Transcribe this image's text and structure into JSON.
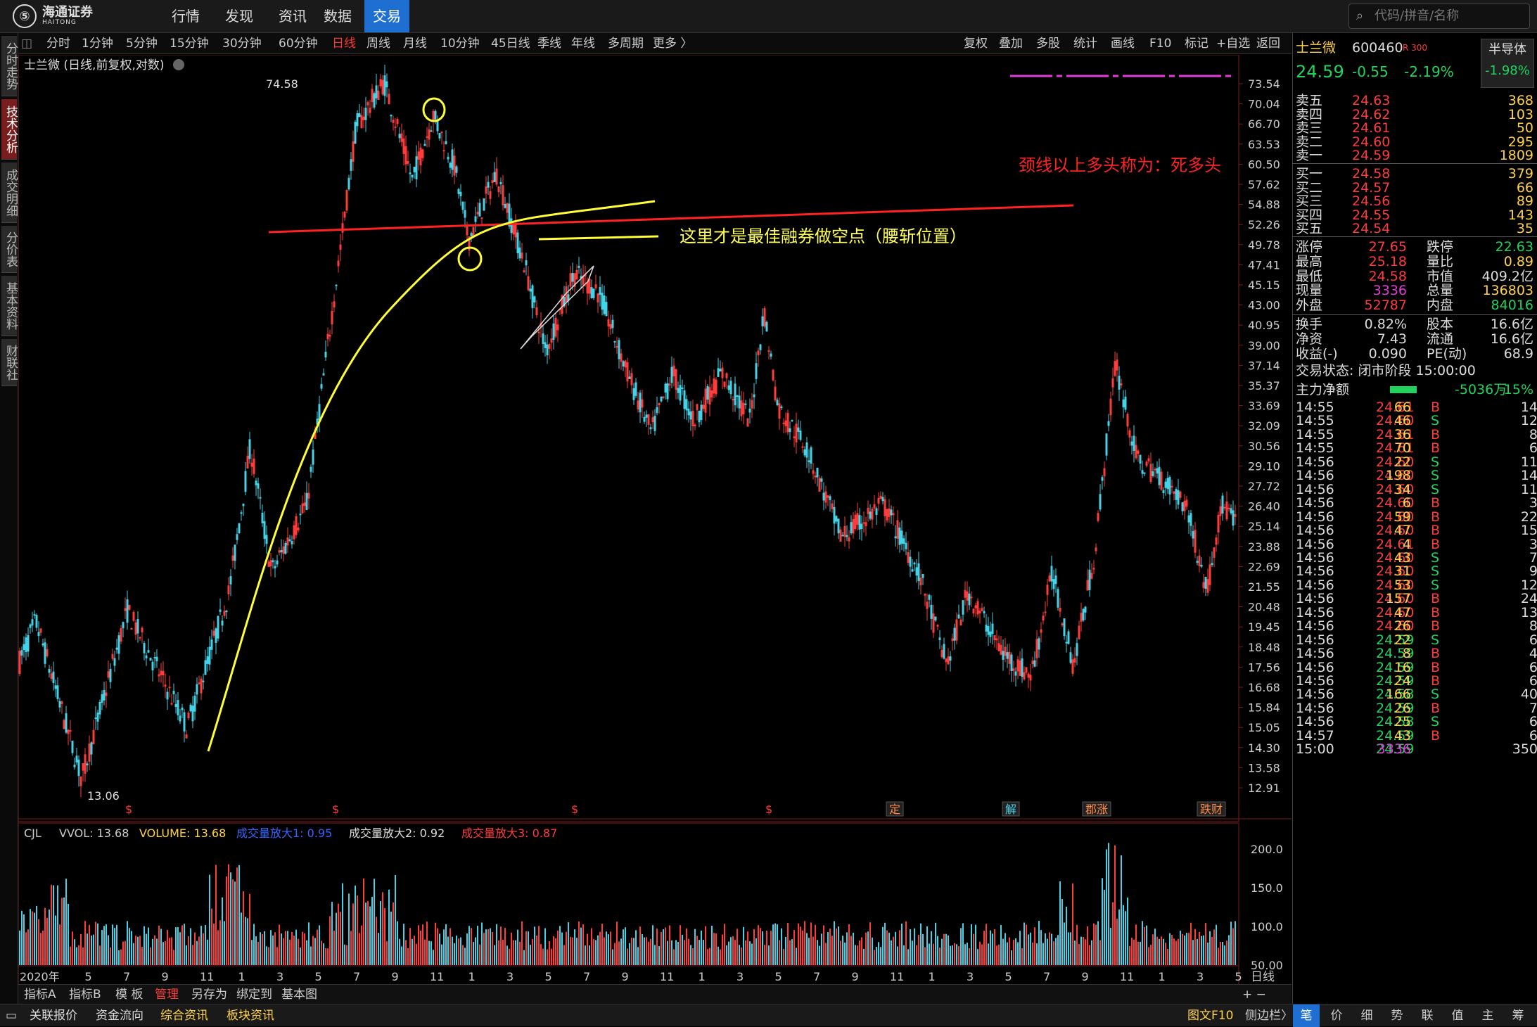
{
  "app": {
    "logo_cn": "海通证券",
    "logo_en": "HAITONG",
    "logo_mark": "⑤"
  },
  "nav": [
    "行情",
    "发现",
    "资讯",
    "数据",
    "交易"
  ],
  "nav_active": 4,
  "search": {
    "placeholder": "代码/拼音/名称"
  },
  "side_tabs": [
    "分时走势",
    "技术分析",
    "成交明细",
    "分价表",
    "基本资料",
    "财联社"
  ],
  "side_active": 1,
  "periods": [
    "分时",
    "1分钟",
    "5分钟",
    "15分钟",
    "30分钟",
    "60分钟",
    "日线",
    "周线",
    "月线",
    "10分钟",
    "45日线",
    "季线",
    "年线",
    "多周期",
    "更多 〉"
  ],
  "period_active": 6,
  "tools": [
    "复权",
    "叠加",
    "多股",
    "统计",
    "画线",
    "F10",
    "标记",
    "+自选",
    "返回"
  ],
  "chart_title": "士兰微 (日线,前复权,对数)",
  "price_axis": [
    "73.54",
    "70.04",
    "66.70",
    "63.53",
    "60.50",
    "57.62",
    "54.88",
    "52.26",
    "49.78",
    "47.41",
    "45.15",
    "43.00",
    "40.95",
    "39.00",
    "37.14",
    "35.37",
    "33.69",
    "32.09",
    "30.56",
    "29.10",
    "27.72",
    "26.40",
    "25.14",
    "23.88",
    "22.69",
    "21.55",
    "20.48",
    "19.45",
    "18.48",
    "17.56",
    "16.68",
    "15.84",
    "15.05",
    "14.30",
    "13.58",
    "12.91"
  ],
  "max_label": "74.58",
  "min_label": "13.06",
  "annotations": {
    "neckline": "颈线以上多头称为：死多头",
    "short_point": "这里才是最佳融券做空点（腰斩位置）"
  },
  "event_markers": [
    "$",
    "$",
    "$",
    "$",
    "定",
    "解",
    "郡涨",
    "跌财"
  ],
  "volume": {
    "label": "CJL",
    "vvol": "VVOL: 13.68",
    "volume": "VOLUME: 13.68",
    "amp1": "成交量放大1: 0.95",
    "amp2": "成交量放大2: 0.92",
    "amp3": "成交量放大3: 0.87",
    "axis": [
      "200.0",
      "150.0",
      "100.0",
      "50.00"
    ]
  },
  "date_axis": [
    "2020年",
    "5",
    "7",
    "9",
    "11",
    "1",
    "3",
    "5",
    "7",
    "9",
    "11",
    "1",
    "3",
    "5",
    "7",
    "9",
    "11",
    "1",
    "3",
    "5",
    "7",
    "9",
    "11",
    "1",
    "3",
    "5",
    "7",
    "9",
    "11",
    "1",
    "3",
    "5"
  ],
  "period_label": "日线",
  "bottom_tabs": [
    "指标A",
    "指标B",
    "模 板",
    "管理",
    "另存为",
    "绑定到",
    "基本图"
  ],
  "bottom_active": 3,
  "footer_left": [
    "关联报价",
    "资金流向",
    "综合资讯",
    "板块资讯"
  ],
  "footer_right": [
    "图文F10",
    "侧边栏〉"
  ],
  "footer_tabs": [
    "笔",
    "价",
    "细",
    "势",
    "联",
    "值",
    "主",
    "筹"
  ],
  "footer_tab_active": 0,
  "stock": {
    "name": "士兰微",
    "code": "600460",
    "badge": "R 300",
    "sector": "半导体",
    "sector_pct": "-1.98%",
    "price": "24.59",
    "change": "-0.55",
    "pct": "-2.19%"
  },
  "asks": [
    [
      "卖五",
      "24.63",
      "368"
    ],
    [
      "卖四",
      "24.62",
      "103"
    ],
    [
      "卖三",
      "24.61",
      "50"
    ],
    [
      "卖二",
      "24.60",
      "295"
    ],
    [
      "卖一",
      "24.59",
      "1809"
    ]
  ],
  "bids": [
    [
      "买一",
      "24.58",
      "379"
    ],
    [
      "买二",
      "24.57",
      "66"
    ],
    [
      "买三",
      "24.56",
      "89"
    ],
    [
      "买四",
      "24.55",
      "143"
    ],
    [
      "买五",
      "24.54",
      "35"
    ]
  ],
  "stats": [
    [
      "涨停",
      "27.65",
      "跌停",
      "22.63"
    ],
    [
      "最高",
      "25.18",
      "量比",
      "0.89"
    ],
    [
      "最低",
      "24.58",
      "市值",
      "409.2亿"
    ],
    [
      "现量",
      "3336",
      "总量",
      "136803"
    ],
    [
      "外盘",
      "52787",
      "内盘",
      "84016"
    ]
  ],
  "stats2": [
    [
      "换手",
      "0.82%",
      "股本",
      "16.6亿"
    ],
    [
      "净资",
      "7.43",
      "流通",
      "16.6亿"
    ],
    [
      "收益(-)",
      "0.090",
      "PE(动)",
      "68.9"
    ]
  ],
  "trade_status": "交易状态: 闭市阶段 15:00:00",
  "main_flow": {
    "label": "主力净额",
    "value": "-5036万",
    "pct": "-15%"
  },
  "ticks": [
    [
      "14:55",
      "24.61",
      "66",
      "B",
      "14"
    ],
    [
      "14:55",
      "24.60",
      "46",
      "S",
      "12"
    ],
    [
      "14:55",
      "24.61",
      "36",
      "B",
      "8"
    ],
    [
      "14:55",
      "24.61",
      "70",
      "B",
      "6"
    ],
    [
      "14:56",
      "24.60",
      "22",
      "S",
      "11"
    ],
    [
      "14:56",
      "24.60",
      "198",
      "S",
      "14"
    ],
    [
      "14:56",
      "24.60",
      "34",
      "S",
      "11"
    ],
    [
      "14:56",
      "24.60",
      "6",
      "B",
      "3"
    ],
    [
      "14:56",
      "24.60",
      "59",
      "B",
      "22"
    ],
    [
      "14:56",
      "24.60",
      "47",
      "B",
      "15"
    ],
    [
      "14:56",
      "24.61",
      "4",
      "B",
      "3"
    ],
    [
      "14:56",
      "24.60",
      "43",
      "S",
      "7"
    ],
    [
      "14:56",
      "24.60",
      "31",
      "S",
      "9"
    ],
    [
      "14:56",
      "24.60",
      "53",
      "S",
      "12"
    ],
    [
      "14:56",
      "24.60",
      "157",
      "B",
      "24"
    ],
    [
      "14:56",
      "24.60",
      "47",
      "B",
      "13"
    ],
    [
      "14:56",
      "24.60",
      "26",
      "B",
      "8"
    ],
    [
      "14:56",
      "24.59",
      "22",
      "S",
      "6"
    ],
    [
      "14:56",
      "24.59",
      "8",
      "B",
      "4"
    ],
    [
      "14:56",
      "24.59",
      "16",
      "B",
      "6"
    ],
    [
      "14:56",
      "24.59",
      "24",
      "B",
      "6"
    ],
    [
      "14:56",
      "24.58",
      "166",
      "S",
      "40"
    ],
    [
      "14:56",
      "24.59",
      "26",
      "B",
      "7"
    ],
    [
      "14:56",
      "24.58",
      "25",
      "S",
      "6"
    ],
    [
      "14:57",
      "24.59",
      "43",
      "B",
      "6"
    ],
    [
      "15:00",
      "24.59",
      "3336",
      "",
      "350"
    ]
  ]
}
